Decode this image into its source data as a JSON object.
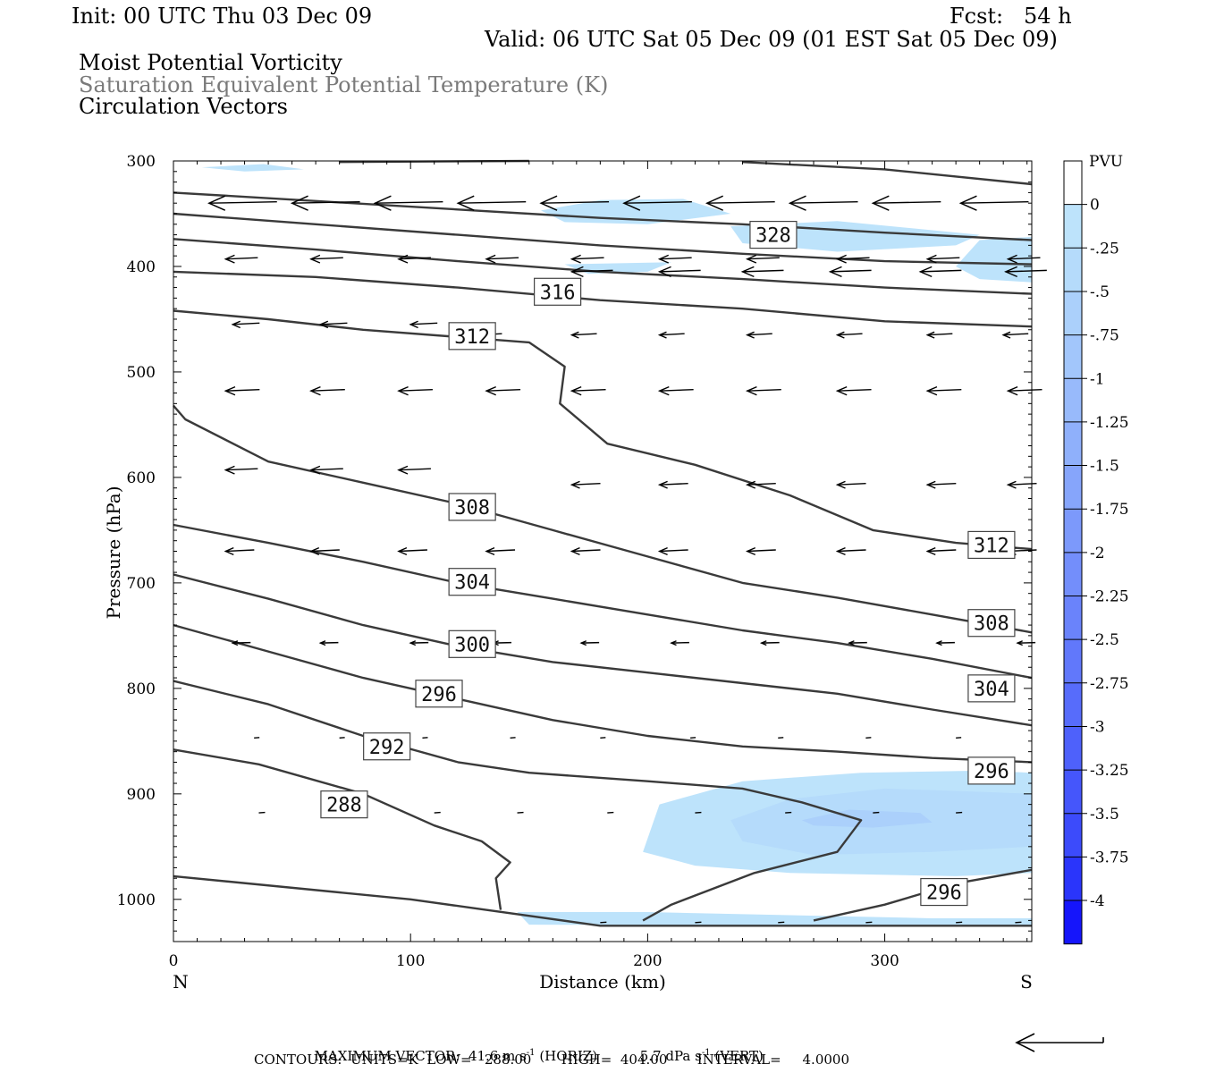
{
  "header": {
    "init": "Init: 00 UTC Thu 03 Dec 09",
    "fcst": "Fcst:   54 h",
    "valid": "Valid: 06 UTC Sat 05 Dec 09 (01 EST Sat 05 Dec 09)",
    "field1": "Moist Potential Vorticity",
    "field2": "Saturation Equivalent Potential Temperature (K)",
    "field3": "Circulation Vectors"
  },
  "footer": {
    "max_label": "MAXIMUM VECTOR:",
    "horiz": "41.6 m s",
    "horiz_sup": "-1",
    "horiz_tag": "(HORIZ)",
    "vert": "5.7 dPa s",
    "vert_sup": "-1",
    "vert_tag": "(VERT)",
    "contours": "CONTOURS:  UNITS=K  LOW=   288.00       HIGH=  404.00       INTERVAL=     4.0000"
  },
  "chart_data": {
    "type": "cross-section",
    "xlabel": "Distance (km)",
    "ylabel": "Pressure (hPa)",
    "xlim": [
      0,
      362
    ],
    "ylim": [
      1040,
      300
    ],
    "x_ticks": [
      "0",
      "100",
      "200",
      "300"
    ],
    "x_tick_values": [
      0,
      100,
      200,
      300
    ],
    "x_end_labels": {
      "left": "N",
      "right": "S"
    },
    "y_ticks": [
      "300",
      "400",
      "500",
      "600",
      "700",
      "800",
      "900",
      "1000"
    ],
    "y_tick_values": [
      300,
      400,
      500,
      600,
      700,
      800,
      900,
      1000
    ],
    "colorbar": {
      "title": "PVU",
      "labels": [
        "0",
        "-.25",
        "-.5",
        "-.75",
        "-1",
        "-1.25",
        "-1.5",
        "-1.75",
        "-2",
        "-2.25",
        "-2.5",
        "-2.75",
        "-3",
        "-3.25",
        "-3.5",
        "-3.75",
        "-4"
      ],
      "colors": [
        "#ffffff",
        "#bde3fb",
        "#b5dbfb",
        "#abd0fb",
        "#a2c6fb",
        "#98bafb",
        "#8fb0fb",
        "#86a5fb",
        "#7c99fb",
        "#738efb",
        "#6a83fb",
        "#6178fb",
        "#576cfb",
        "#4e61fb",
        "#4556fb",
        "#3c4bfb",
        "#2a35fb",
        "#1515fb"
      ]
    },
    "theta_contours": [
      {
        "label": "288",
        "points": [
          [
            0,
            978
          ],
          [
            100,
            1000
          ],
          [
            180,
            1025
          ],
          [
            362,
            1025
          ]
        ]
      },
      {
        "label": "",
        "points": [
          [
            0,
            858
          ],
          [
            36,
            872
          ],
          [
            80,
            900
          ],
          [
            110,
            930
          ],
          [
            130,
            945
          ],
          [
            142,
            965
          ],
          [
            136,
            980
          ],
          [
            138,
            1010
          ]
        ]
      },
      {
        "label": "292",
        "points": [
          [
            0,
            793
          ],
          [
            40,
            815
          ],
          [
            80,
            845
          ],
          [
            120,
            870
          ],
          [
            150,
            880
          ],
          [
            200,
            888
          ],
          [
            240,
            895
          ],
          [
            265,
            908
          ],
          [
            290,
            925
          ],
          [
            280,
            955
          ],
          [
            245,
            975
          ],
          [
            210,
            1005
          ],
          [
            198,
            1020
          ]
        ]
      },
      {
        "label": "296",
        "points": [
          [
            0,
            740
          ],
          [
            40,
            765
          ],
          [
            80,
            790
          ],
          [
            120,
            810
          ],
          [
            160,
            830
          ],
          [
            200,
            845
          ],
          [
            240,
            855
          ],
          [
            280,
            860
          ],
          [
            320,
            866
          ],
          [
            362,
            870
          ]
        ]
      },
      {
        "label": "296",
        "points": [
          [
            270,
            1020
          ],
          [
            300,
            1005
          ],
          [
            330,
            985
          ],
          [
            362,
            972
          ]
        ]
      },
      {
        "label": "300",
        "points": [
          [
            0,
            692
          ],
          [
            40,
            715
          ],
          [
            80,
            740
          ],
          [
            120,
            760
          ],
          [
            160,
            775
          ],
          [
            200,
            785
          ],
          [
            240,
            795
          ],
          [
            280,
            805
          ],
          [
            320,
            820
          ],
          [
            362,
            835
          ]
        ]
      },
      {
        "label": "304",
        "points": [
          [
            0,
            645
          ],
          [
            40,
            662
          ],
          [
            80,
            680
          ],
          [
            120,
            700
          ],
          [
            160,
            715
          ],
          [
            200,
            730
          ],
          [
            240,
            745
          ],
          [
            280,
            757
          ],
          [
            320,
            772
          ],
          [
            362,
            790
          ]
        ]
      },
      {
        "label": "308",
        "points": [
          [
            0,
            532
          ],
          [
            5,
            545
          ],
          [
            40,
            585
          ],
          [
            80,
            605
          ],
          [
            120,
            625
          ],
          [
            160,
            650
          ],
          [
            200,
            675
          ],
          [
            240,
            700
          ],
          [
            280,
            714
          ],
          [
            320,
            730
          ],
          [
            362,
            747
          ]
        ]
      },
      {
        "label": "312",
        "points": [
          [
            0,
            442
          ],
          [
            40,
            450
          ],
          [
            80,
            460
          ],
          [
            150,
            472
          ],
          [
            165,
            495
          ],
          [
            163,
            530
          ],
          [
            183,
            568
          ],
          [
            220,
            588
          ],
          [
            260,
            617
          ],
          [
            295,
            650
          ],
          [
            330,
            662
          ],
          [
            362,
            668
          ]
        ]
      },
      {
        "label": "316",
        "points": [
          [
            0,
            405
          ],
          [
            60,
            410
          ],
          [
            120,
            420
          ],
          [
            180,
            432
          ],
          [
            240,
            440
          ],
          [
            300,
            452
          ],
          [
            362,
            457
          ]
        ]
      },
      {
        "label": "",
        "points": [
          [
            0,
            374
          ],
          [
            60,
            384
          ],
          [
            120,
            395
          ],
          [
            180,
            405
          ],
          [
            240,
            412
          ],
          [
            300,
            420
          ],
          [
            362,
            426
          ]
        ]
      },
      {
        "label": "",
        "points": [
          [
            0,
            350
          ],
          [
            60,
            360
          ],
          [
            120,
            370
          ],
          [
            180,
            380
          ],
          [
            240,
            388
          ],
          [
            300,
            395
          ],
          [
            362,
            398
          ]
        ]
      },
      {
        "label": "328",
        "points": [
          [
            0,
            330
          ],
          [
            60,
            338
          ],
          [
            120,
            346
          ],
          [
            180,
            354
          ],
          [
            240,
            360
          ],
          [
            300,
            368
          ],
          [
            362,
            375
          ]
        ]
      },
      {
        "label": "",
        "points": [
          [
            70,
            301
          ],
          [
            150,
            300
          ]
        ]
      },
      {
        "label": "",
        "points": [
          [
            240,
            301
          ],
          [
            300,
            308
          ],
          [
            362,
            322
          ]
        ]
      }
    ],
    "label_positions": [
      {
        "text": "328",
        "x": 253,
        "p": 370
      },
      {
        "text": "316",
        "x": 162,
        "p": 424
      },
      {
        "text": "312",
        "x": 126,
        "p": 466
      },
      {
        "text": "308",
        "x": 126,
        "p": 628
      },
      {
        "text": "304",
        "x": 126,
        "p": 699
      },
      {
        "text": "300",
        "x": 126,
        "p": 758
      },
      {
        "text": "296",
        "x": 112,
        "p": 805
      },
      {
        "text": "292",
        "x": 90,
        "p": 855
      },
      {
        "text": "288",
        "x": 72,
        "p": 910
      },
      {
        "text": "312",
        "x": 345,
        "p": 664
      },
      {
        "text": "308",
        "x": 345,
        "p": 738
      },
      {
        "text": "304",
        "x": 345,
        "p": 800
      },
      {
        "text": "296",
        "x": 345,
        "p": 878
      },
      {
        "text": "296",
        "x": 325,
        "p": 993
      }
    ],
    "pv_regions": [
      {
        "level": 1,
        "points": [
          [
            12,
            306
          ],
          [
            38,
            303
          ],
          [
            55,
            308
          ],
          [
            30,
            310
          ]
        ]
      },
      {
        "level": 1,
        "points": [
          [
            155,
            347
          ],
          [
            180,
            337
          ],
          [
            215,
            336
          ],
          [
            235,
            350
          ],
          [
            200,
            360
          ],
          [
            165,
            358
          ]
        ]
      },
      {
        "level": 1,
        "points": [
          [
            235,
            362
          ],
          [
            280,
            357
          ],
          [
            340,
            370
          ],
          [
            330,
            380
          ],
          [
            280,
            386
          ],
          [
            240,
            378
          ]
        ]
      },
      {
        "level": 1,
        "points": [
          [
            340,
            375
          ],
          [
            362,
            372
          ],
          [
            362,
            415
          ],
          [
            340,
            412
          ],
          [
            330,
            400
          ]
        ]
      },
      {
        "level": 1,
        "points": [
          [
            165,
            398
          ],
          [
            210,
            396
          ],
          [
            200,
            405
          ],
          [
            175,
            407
          ]
        ]
      },
      {
        "level": 1,
        "points": [
          [
            205,
            910
          ],
          [
            240,
            888
          ],
          [
            290,
            880
          ],
          [
            340,
            878
          ],
          [
            362,
            880
          ],
          [
            362,
            975
          ],
          [
            330,
            978
          ],
          [
            260,
            975
          ],
          [
            220,
            968
          ],
          [
            198,
            955
          ]
        ]
      },
      {
        "level": 2,
        "points": [
          [
            235,
            925
          ],
          [
            260,
            905
          ],
          [
            300,
            895
          ],
          [
            340,
            898
          ],
          [
            362,
            900
          ],
          [
            362,
            950
          ],
          [
            320,
            955
          ],
          [
            270,
            958
          ],
          [
            240,
            945
          ]
        ]
      },
      {
        "level": 3,
        "points": [
          [
            265,
            925
          ],
          [
            285,
            915
          ],
          [
            315,
            918
          ],
          [
            320,
            927
          ],
          [
            295,
            932
          ],
          [
            270,
            930
          ]
        ]
      },
      {
        "level": 1,
        "points": [
          [
            145,
            1012
          ],
          [
            200,
            1012
          ],
          [
            260,
            1015
          ],
          [
            320,
            1018
          ],
          [
            362,
            1018
          ],
          [
            362,
            1025
          ],
          [
            150,
            1024
          ]
        ]
      }
    ],
    "vectors": [
      {
        "p": 340,
        "xs": [
          15,
          50,
          85,
          120,
          155,
          190,
          225,
          260,
          295,
          332
        ],
        "len": 76
      },
      {
        "p": 393,
        "xs": [
          22,
          58,
          95,
          132,
          168,
          205,
          242,
          280,
          318,
          352
        ],
        "len": 36
      },
      {
        "p": 405,
        "xs": [
          168,
          205,
          240,
          277,
          315,
          351
        ],
        "len": 46
      },
      {
        "p": 455,
        "xs": [
          25,
          62,
          100
        ],
        "len": 30
      },
      {
        "p": 465,
        "xs": [
          128,
          168,
          205,
          242,
          280,
          318,
          350
        ],
        "len": 28
      },
      {
        "p": 518,
        "xs": [
          22,
          58,
          95,
          132,
          168,
          205,
          242,
          280,
          318,
          352
        ],
        "len": 38
      },
      {
        "p": 593,
        "xs": [
          22,
          58,
          95
        ],
        "len": 36
      },
      {
        "p": 607,
        "xs": [
          168,
          205,
          242,
          280,
          318,
          352
        ],
        "len": 32
      },
      {
        "p": 670,
        "xs": [
          22,
          58,
          95,
          132,
          168,
          205,
          242,
          280,
          318,
          352
        ],
        "len": 32
      },
      {
        "p": 757,
        "xs": [
          25,
          62,
          100,
          135,
          172,
          210,
          248,
          285,
          322,
          356
        ],
        "len": 20
      },
      {
        "p": 847,
        "xs": [
          34,
          70,
          105,
          142,
          180,
          218,
          255,
          292,
          330
        ],
        "len": 6
      },
      {
        "p": 918,
        "xs": [
          36,
          73,
          110,
          145,
          183,
          220,
          258,
          295,
          330
        ],
        "len": 7
      },
      {
        "p": 1022,
        "xs": [
          180,
          220,
          255,
          292,
          330,
          355
        ],
        "len": 7
      }
    ],
    "reference_vector": "41.6 m s-1"
  }
}
